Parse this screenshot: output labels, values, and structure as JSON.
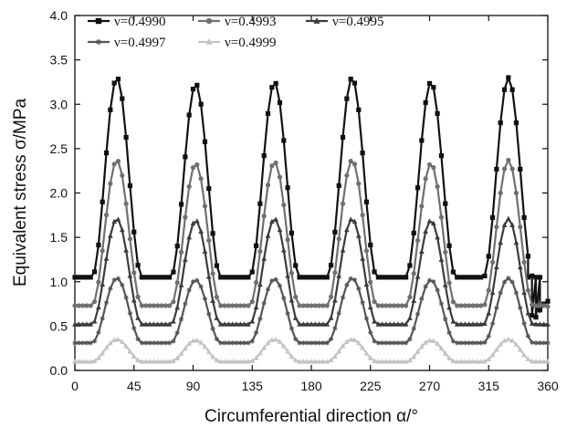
{
  "chart_data": {
    "type": "line",
    "xlabel": "Circumferential direction  α/°",
    "ylabel": "Equivalent stress  σ/MPa",
    "xlim": [
      0,
      360
    ],
    "ylim": [
      0.0,
      4.0
    ],
    "xticks": [
      0,
      45,
      90,
      135,
      180,
      225,
      270,
      315,
      360
    ],
    "yticks": [
      "0.0",
      "0.5",
      "1.0",
      "1.5",
      "2.0",
      "2.5",
      "3.0",
      "3.5",
      "4.0"
    ],
    "grid": false,
    "legend_position": "top-left",
    "peak_angles": [
      32,
      92,
      152,
      211,
      271,
      330
    ],
    "series": [
      {
        "name": "ν=0.4990",
        "color": "#111111",
        "marker": "square",
        "base": 1.05,
        "peaks": [
          3.3,
          3.23,
          3.25,
          3.3,
          3.25,
          3.3
        ],
        "end_value": 0.78
      },
      {
        "name": "ν=0.4993",
        "color": "#707070",
        "marker": "circle",
        "base": 0.73,
        "peaks": [
          2.37,
          2.33,
          2.35,
          2.37,
          2.33,
          2.37
        ],
        "end_value": 0.72
      },
      {
        "name": "ν=0.4995",
        "color": "#3c3c3c",
        "marker": "triangle",
        "base": 0.52,
        "peaks": [
          1.71,
          1.69,
          1.71,
          1.71,
          1.69,
          1.71
        ],
        "end_value": 0.52
      },
      {
        "name": "ν=0.4997",
        "color": "#555555",
        "marker": "star",
        "base": 0.31,
        "peaks": [
          1.04,
          1.02,
          1.03,
          1.04,
          1.02,
          1.04
        ],
        "end_value": 0.31
      },
      {
        "name": "ν=0.4999",
        "color": "#c4c4c4",
        "marker": "triangle",
        "base": 0.1,
        "peaks": [
          0.35,
          0.34,
          0.35,
          0.35,
          0.34,
          0.35
        ],
        "end_value": 0.1
      }
    ]
  }
}
